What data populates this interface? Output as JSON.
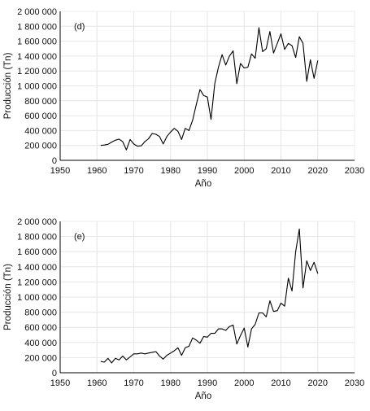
{
  "chart_data": [
    {
      "type": "line",
      "panel_label": "(d)",
      "xlabel": "Año",
      "ylabel": "Producción (Tn)",
      "xlim": [
        1950,
        2030
      ],
      "ylim": [
        0,
        2000000
      ],
      "x_ticks": [
        "1950",
        "1960",
        "1970",
        "1980",
        "1990",
        "2000",
        "2010",
        "2020",
        "2030"
      ],
      "y_ticks": [
        "0",
        "200 000",
        "400 000",
        "600 000",
        "800 000",
        "1 000 000",
        "1 200 000",
        "1 400 000",
        "1 600 000",
        "1 800 000",
        "2 000 000"
      ],
      "grid": true,
      "series": [
        {
          "x": [
            1961,
            1962,
            1963,
            1964,
            1965,
            1966,
            1967,
            1968,
            1969,
            1970,
            1971,
            1972,
            1973,
            1974,
            1975,
            1976,
            1977,
            1978,
            1979,
            1980,
            1981,
            1982,
            1983,
            1984,
            1985,
            1986,
            1987,
            1988,
            1989,
            1990,
            1991,
            1992,
            1993,
            1994,
            1995,
            1996,
            1997,
            1998,
            1999,
            2000,
            2001,
            2002,
            2003,
            2004,
            2005,
            2006,
            2007,
            2008,
            2009,
            2010,
            2011,
            2012,
            2013,
            2014,
            2015,
            2016,
            2017,
            2018,
            2019,
            2020
          ],
          "y": [
            200000,
            205000,
            215000,
            245000,
            270000,
            285000,
            250000,
            140000,
            280000,
            220000,
            190000,
            195000,
            250000,
            290000,
            360000,
            350000,
            320000,
            220000,
            320000,
            380000,
            430000,
            390000,
            280000,
            430000,
            400000,
            540000,
            750000,
            950000,
            870000,
            850000,
            550000,
            1030000,
            1250000,
            1420000,
            1280000,
            1400000,
            1470000,
            1030000,
            1300000,
            1240000,
            1250000,
            1430000,
            1370000,
            1780000,
            1460000,
            1500000,
            1730000,
            1440000,
            1570000,
            1700000,
            1490000,
            1570000,
            1540000,
            1380000,
            1660000,
            1570000,
            1060000,
            1350000,
            1100000,
            1340000
          ]
        }
      ]
    },
    {
      "type": "line",
      "panel_label": "(e)",
      "xlabel": "Año",
      "ylabel": "Producción (Tn)",
      "xlim": [
        1950,
        2030
      ],
      "ylim": [
        0,
        2000000
      ],
      "x_ticks": [
        "1950",
        "1960",
        "1970",
        "1980",
        "1990",
        "2000",
        "2010",
        "2020",
        "2030"
      ],
      "y_ticks": [
        "0",
        "200 000",
        "400 000",
        "600 000",
        "800 000",
        "1 000 000",
        "1 200 000",
        "1 400 000",
        "1 600 000",
        "1 800 000",
        "2 000 000"
      ],
      "grid": true,
      "series": [
        {
          "x": [
            1961,
            1962,
            1963,
            1964,
            1965,
            1966,
            1967,
            1968,
            1969,
            1970,
            1971,
            1972,
            1973,
            1974,
            1975,
            1976,
            1977,
            1978,
            1979,
            1980,
            1981,
            1982,
            1983,
            1984,
            1985,
            1986,
            1987,
            1988,
            1989,
            1990,
            1991,
            1992,
            1993,
            1994,
            1995,
            1996,
            1997,
            1998,
            1999,
            2000,
            2001,
            2002,
            2003,
            2004,
            2005,
            2006,
            2007,
            2008,
            2009,
            2010,
            2011,
            2012,
            2013,
            2014,
            2015,
            2016,
            2017,
            2018,
            2019,
            2020
          ],
          "y": [
            150000,
            140000,
            190000,
            130000,
            190000,
            170000,
            220000,
            170000,
            210000,
            250000,
            250000,
            260000,
            250000,
            260000,
            270000,
            280000,
            220000,
            180000,
            230000,
            260000,
            290000,
            330000,
            230000,
            330000,
            350000,
            460000,
            430000,
            390000,
            480000,
            470000,
            520000,
            520000,
            580000,
            580000,
            560000,
            610000,
            630000,
            380000,
            490000,
            590000,
            340000,
            580000,
            640000,
            790000,
            790000,
            740000,
            950000,
            810000,
            820000,
            920000,
            880000,
            1250000,
            1080000,
            1600000,
            1900000,
            1120000,
            1480000,
            1350000,
            1460000,
            1310000
          ]
        }
      ]
    }
  ]
}
